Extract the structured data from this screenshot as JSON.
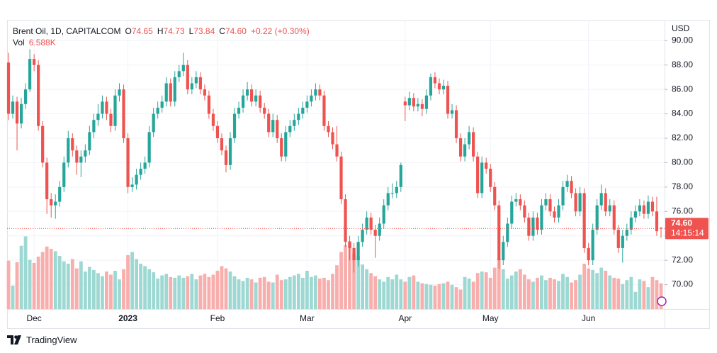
{
  "chart_data": {
    "type": "candlestick",
    "header": {
      "symbol": "Brent Oil, 1D, CAPITALCOM",
      "ohlc": [
        {
          "key": "O",
          "value": "74.65"
        },
        {
          "key": "H",
          "value": "74.73"
        },
        {
          "key": "L",
          "value": "73.84"
        },
        {
          "key": "C",
          "value": "74.60"
        }
      ],
      "change": "+0.22 (+0.30%)",
      "volume_key": "Vol",
      "volume_value": "6.588K"
    },
    "currency": "USD",
    "price_label": "74.60",
    "countdown": "14:15:14",
    "up_color": "#26a69a",
    "down_color": "#ef5350",
    "volume_up_color": "#9ed8d2",
    "volume_down_color": "#f8aeac",
    "grid": true,
    "categories": [
      null,
      null,
      null,
      null,
      null,
      null,
      "Dec",
      null,
      null,
      null,
      null,
      null,
      null,
      null,
      null,
      null,
      null,
      null,
      null,
      null,
      null,
      null,
      null,
      null,
      null,
      null,
      null,
      null,
      "2023",
      null,
      null,
      null,
      null,
      null,
      null,
      null,
      null,
      null,
      null,
      null,
      null,
      null,
      null,
      null,
      null,
      null,
      null,
      null,
      null,
      "Feb",
      null,
      null,
      null,
      null,
      null,
      null,
      null,
      null,
      null,
      null,
      null,
      null,
      null,
      null,
      null,
      null,
      null,
      null,
      null,
      null,
      "Mar",
      null,
      null,
      null,
      null,
      null,
      null,
      null,
      null,
      null,
      null,
      null,
      null,
      null,
      null,
      null,
      null,
      null,
      null,
      null,
      null,
      null,
      null,
      "Apr",
      null,
      null,
      null,
      null,
      null,
      null,
      null,
      null,
      null,
      null,
      null,
      null,
      null,
      null,
      null,
      null,
      null,
      null,
      null,
      "May",
      null,
      null,
      null,
      null,
      null,
      null,
      null,
      null,
      null,
      null,
      null,
      null,
      null,
      null,
      null,
      null,
      null,
      null,
      null,
      null,
      null,
      null,
      "Jun",
      null,
      null,
      null,
      null,
      null,
      null,
      null,
      null,
      null,
      null,
      null,
      null,
      null,
      null,
      null,
      null,
      null
    ],
    "open": [
      88.2,
      84.0,
      85.0,
      83.2,
      84.8,
      86.0,
      88.5,
      88.0,
      83.0,
      80.0,
      77.0,
      76.5,
      76.8,
      78.0,
      80.0,
      82.0,
      81.0,
      80.0,
      80.5,
      81.0,
      82.5,
      83.5,
      84.0,
      85.0,
      84.0,
      83.0,
      85.5,
      86.0,
      82.0,
      78.0,
      78.2,
      79.0,
      79.5,
      80.0,
      82.5,
      84.0,
      84.5,
      85.0,
      86.5,
      85.0,
      87.0,
      87.5,
      88.0,
      86.0,
      86.5,
      87.0,
      86.0,
      85.5,
      84.0,
      83.0,
      82.0,
      81.0,
      79.8,
      82.0,
      84.0,
      84.5,
      85.5,
      86.0,
      85.0,
      85.5,
      84.5,
      84.0,
      82.5,
      83.5,
      82.0,
      80.5,
      82.5,
      83.0,
      83.5,
      84.0,
      84.5,
      85.0,
      85.5,
      86.0,
      85.5,
      83.0,
      82.5,
      81.5,
      80.5,
      77.0,
      73.5,
      73.0,
      72.0,
      73.5,
      74.5,
      75.5,
      74.5,
      74.0,
      75.0,
      76.5,
      77.5,
      77.5,
      78.0,
      85.0,
      84.7,
      85.3,
      84.6,
      84.8,
      84.4,
      85.5,
      87.0,
      86.5,
      86.0,
      86.3,
      84.0,
      84.3,
      82.0,
      80.5,
      81.5,
      82.5,
      80.5,
      77.5,
      80.0,
      79.5,
      78.0,
      76.5,
      72.0,
      73.5,
      75.0,
      76.8,
      77.0,
      76.5,
      75.5,
      74.0,
      75.5,
      74.5,
      76.5,
      77.0,
      76.0,
      75.5,
      76.5,
      78.0,
      78.5,
      77.5,
      76.0,
      77.5,
      73.0,
      72.0,
      74.5,
      76.5,
      77.5,
      76.0,
      76.5,
      74.5,
      73.0,
      74.0,
      74.5,
      75.5,
      76.0,
      76.5,
      75.8,
      76.8,
      76.0,
      74.65
    ],
    "high": [
      89.0,
      85.5,
      85.4,
      85.3,
      86.5,
      89.3,
      88.9,
      88.4,
      83.4,
      80.4,
      77.5,
      77.4,
      78.5,
      80.5,
      82.6,
      82.4,
      81.4,
      81.0,
      81.5,
      83.0,
      84.0,
      84.8,
      85.5,
      85.4,
      84.4,
      86.0,
      86.5,
      86.4,
      82.4,
      78.8,
      79.5,
      80.0,
      80.5,
      83.0,
      84.5,
      85.0,
      85.5,
      87.0,
      86.9,
      87.5,
      88.0,
      89.0,
      88.4,
      87.0,
      87.5,
      87.4,
      86.4,
      85.9,
      84.4,
      83.4,
      82.4,
      81.4,
      82.5,
      84.5,
      85.0,
      86.0,
      86.6,
      86.4,
      86.0,
      85.9,
      84.9,
      84.4,
      84.0,
      83.9,
      82.4,
      83.0,
      83.5,
      84.0,
      84.5,
      85.0,
      85.5,
      86.0,
      86.5,
      86.4,
      85.9,
      83.4,
      82.9,
      83.0,
      80.9,
      77.4,
      74.0,
      73.4,
      74.0,
      75.0,
      76.0,
      75.9,
      74.9,
      75.5,
      77.0,
      78.0,
      78.3,
      78.5,
      80.0,
      85.4,
      85.8,
      85.7,
      85.3,
      85.2,
      86.0,
      87.3,
      87.4,
      86.9,
      86.8,
      86.7,
      84.8,
      84.7,
      82.4,
      82.0,
      83.0,
      82.9,
      80.9,
      80.5,
      80.4,
      79.9,
      78.4,
      76.9,
      74.0,
      75.5,
      77.3,
      77.5,
      77.4,
      76.9,
      75.9,
      76.0,
      75.9,
      77.0,
      77.5,
      77.4,
      76.4,
      77.0,
      78.5,
      79.0,
      78.9,
      77.9,
      78.0,
      77.9,
      73.4,
      75.0,
      77.0,
      78.2,
      77.9,
      77.0,
      76.9,
      74.9,
      74.5,
      75.0,
      76.0,
      76.5,
      77.0,
      76.9,
      77.3,
      77.2,
      77.2,
      74.73
    ],
    "low": [
      83.5,
      83.6,
      81.0,
      82.8,
      84.4,
      85.8,
      87.5,
      82.6,
      79.6,
      75.8,
      75.5,
      75.4,
      76.4,
      77.6,
      79.6,
      80.5,
      79.0,
      78.8,
      80.0,
      80.6,
      82.0,
      83.0,
      83.6,
      83.5,
      82.5,
      82.6,
      85.0,
      81.6,
      77.5,
      77.6,
      77.8,
      78.6,
      79.1,
      79.6,
      82.1,
      83.6,
      84.1,
      84.6,
      84.6,
      84.6,
      86.6,
      87.1,
      85.6,
      85.6,
      86.1,
      85.6,
      85.1,
      83.6,
      82.6,
      81.6,
      80.6,
      79.2,
      79.4,
      81.6,
      83.6,
      84.1,
      85.1,
      84.6,
      84.6,
      84.1,
      83.6,
      82.1,
      82.1,
      81.6,
      80.1,
      80.1,
      82.1,
      82.6,
      83.1,
      83.6,
      84.1,
      84.6,
      85.1,
      85.1,
      82.6,
      82.1,
      81.1,
      80.1,
      76.6,
      73.1,
      72.0,
      71.0,
      71.5,
      73.1,
      74.1,
      74.1,
      72.2,
      73.6,
      74.6,
      76.1,
      77.1,
      77.1,
      77.6,
      83.4,
      84.3,
      84.2,
      84.2,
      83.8,
      84.0,
      85.1,
      86.1,
      85.6,
      85.6,
      83.6,
      83.6,
      81.6,
      80.1,
      80.1,
      81.1,
      80.1,
      77.1,
      77.1,
      79.1,
      77.6,
      76.1,
      71.3,
      71.6,
      73.1,
      74.6,
      76.4,
      76.1,
      75.1,
      73.6,
      73.6,
      74.1,
      74.1,
      76.1,
      75.6,
      75.1,
      75.1,
      76.1,
      77.6,
      77.1,
      75.6,
      75.6,
      72.6,
      71.6,
      71.6,
      74.1,
      76.1,
      75.6,
      75.6,
      74.1,
      72.6,
      71.8,
      73.6,
      74.1,
      75.1,
      75.6,
      75.4,
      75.4,
      75.6,
      74.0,
      73.84
    ],
    "close": [
      84.0,
      85.0,
      83.2,
      84.8,
      86.0,
      88.5,
      88.0,
      83.0,
      80.0,
      77.0,
      76.5,
      76.8,
      78.0,
      80.0,
      82.0,
      81.0,
      80.0,
      80.5,
      81.0,
      82.5,
      83.5,
      84.0,
      85.0,
      84.0,
      83.0,
      85.5,
      86.0,
      82.0,
      78.0,
      78.2,
      79.0,
      79.5,
      80.0,
      82.5,
      84.0,
      84.5,
      85.0,
      86.5,
      85.0,
      87.0,
      87.5,
      88.0,
      86.0,
      86.5,
      87.0,
      86.0,
      85.5,
      84.0,
      83.0,
      82.0,
      81.0,
      79.8,
      82.0,
      84.0,
      84.5,
      85.5,
      86.0,
      85.0,
      85.5,
      84.5,
      84.0,
      82.5,
      83.5,
      82.0,
      80.5,
      82.5,
      83.0,
      83.5,
      84.0,
      84.5,
      85.0,
      85.5,
      86.0,
      85.5,
      83.0,
      82.5,
      81.5,
      80.5,
      77.0,
      73.5,
      73.0,
      72.0,
      73.5,
      74.5,
      75.5,
      74.5,
      74.0,
      75.0,
      76.5,
      77.5,
      77.5,
      78.0,
      79.8,
      84.7,
      85.3,
      84.6,
      84.8,
      84.4,
      85.5,
      87.0,
      86.5,
      86.0,
      86.3,
      84.0,
      84.3,
      82.0,
      80.5,
      81.5,
      82.5,
      80.5,
      77.5,
      80.0,
      79.5,
      78.0,
      76.5,
      72.0,
      73.5,
      75.0,
      76.8,
      77.0,
      76.5,
      75.5,
      74.0,
      75.5,
      74.5,
      76.5,
      77.0,
      76.0,
      75.5,
      76.5,
      78.0,
      78.5,
      77.5,
      76.0,
      77.5,
      73.0,
      72.0,
      74.5,
      76.5,
      77.5,
      76.0,
      76.5,
      74.5,
      73.0,
      74.0,
      74.5,
      75.5,
      76.0,
      76.5,
      75.8,
      76.8,
      76.0,
      74.38,
      74.6
    ],
    "volume": [
      12.4,
      6.0,
      12.0,
      16.2,
      18.6,
      12.6,
      11.8,
      13.4,
      14.6,
      16.0,
      15.4,
      14.8,
      13.6,
      12.2,
      11.6,
      12.8,
      10.4,
      12.2,
      9.6,
      10.8,
      10.0,
      9.2,
      8.4,
      9.6,
      8.8,
      9.8,
      7.6,
      10.2,
      13.8,
      14.6,
      12.8,
      11.6,
      11.0,
      10.2,
      9.4,
      7.8,
      8.6,
      9.0,
      8.2,
      8.0,
      8.6,
      8.0,
      8.4,
      9.0,
      7.6,
      8.6,
      9.0,
      8.2,
      8.8,
      9.8,
      11.0,
      10.4,
      9.6,
      8.4,
      7.6,
      7.2,
      8.0,
      7.6,
      6.8,
      8.0,
      8.2,
      7.0,
      6.8,
      8.8,
      7.4,
      7.6,
      8.2,
      8.6,
      9.0,
      8.0,
      9.8,
      8.2,
      8.6,
      7.8,
      8.0,
      7.4,
      9.0,
      11.2,
      14.6,
      16.4,
      17.4,
      14.2,
      13.6,
      11.4,
      10.2,
      9.2,
      8.4,
      7.6,
      7.0,
      8.2,
      7.6,
      8.8,
      7.6,
      7.0,
      8.2,
      8.6,
      7.0,
      6.6,
      6.4,
      6.2,
      6.0,
      6.4,
      6.6,
      7.0,
      6.2,
      5.6,
      5.0,
      8.2,
      7.8,
      7.0,
      9.2,
      9.6,
      9.4,
      8.0,
      10.6,
      13.0,
      10.2,
      7.8,
      8.6,
      9.6,
      10.2,
      8.8,
      7.6,
      7.0,
      8.0,
      8.6,
      7.4,
      8.0,
      7.6,
      7.2,
      9.0,
      8.2,
      6.8,
      7.4,
      8.8,
      11.6,
      10.4,
      10.0,
      9.2,
      10.6,
      9.8,
      8.6,
      8.0,
      7.8,
      6.4,
      7.4,
      8.2,
      4.4,
      7.6,
      7.2,
      5.6,
      8.2,
      7.4,
      6.588
    ],
    "ylim": [
      68.0,
      91.7
    ],
    "yticks": [
      {
        "value": 70,
        "label": "70.00"
      },
      {
        "value": 72,
        "label": "72.00"
      },
      {
        "value": 74,
        "label": "74.00"
      },
      {
        "value": 76,
        "label": "76.00"
      },
      {
        "value": 78,
        "label": "78.00"
      },
      {
        "value": 80,
        "label": "80.00"
      },
      {
        "value": 82,
        "label": "82.00"
      },
      {
        "value": 84,
        "label": "84.00"
      },
      {
        "value": 86,
        "label": "86.00"
      },
      {
        "value": 88,
        "label": "88.00"
      },
      {
        "value": 90,
        "label": "90.00"
      }
    ],
    "volume_lim": [
      0,
      74
    ]
  },
  "branding": "TradingView"
}
